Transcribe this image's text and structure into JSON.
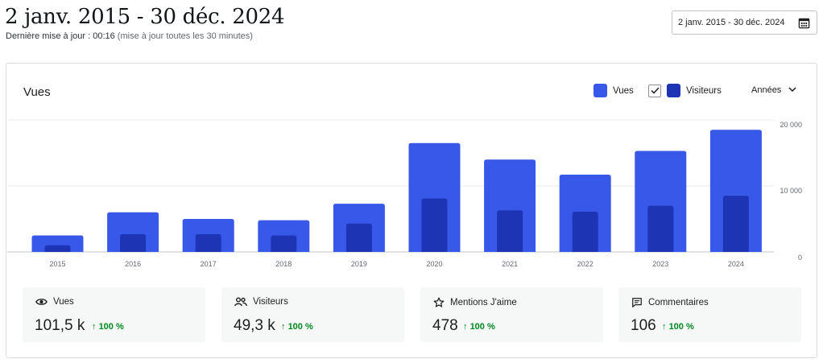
{
  "header": {
    "title": "2 janv. 2015 - 30 déc. 2024",
    "last_update_label": "Dernière mise à jour : 00:16",
    "update_note": "(mise à jour toutes les 30 minutes)",
    "date_range": "2 janv. 2015 - 30 déc. 2024",
    "date_range_icon": "calendar-icon"
  },
  "panel": {
    "title": "Vues",
    "legend": [
      {
        "label": "Vues",
        "color": "#3858e9"
      },
      {
        "label": "Visiteurs",
        "color": "#1d35b4",
        "checked": true
      }
    ],
    "period": "Années"
  },
  "chart_data": {
    "type": "bar",
    "categories": [
      "2015",
      "2016",
      "2017",
      "2018",
      "2019",
      "2020",
      "2021",
      "2022",
      "2023",
      "2024"
    ],
    "series": [
      {
        "name": "Vues",
        "color": "#3858e9",
        "values": [
          2500,
          6000,
          5000,
          4800,
          7300,
          16500,
          14000,
          11700,
          15300,
          18500
        ]
      },
      {
        "name": "Visiteurs",
        "color": "#1d35b4",
        "values": [
          1000,
          2700,
          2700,
          2500,
          4300,
          8100,
          6300,
          6100,
          7000,
          8500
        ]
      }
    ],
    "y_ticks": [
      "0",
      "10 000",
      "20 000"
    ],
    "ylim": [
      0,
      20000
    ],
    "grid": true,
    "legend_position": "top-right"
  },
  "stats": [
    {
      "label": "Vues",
      "icon": "eye-icon",
      "value": "101,5 k",
      "change": "100 %",
      "active": true
    },
    {
      "label": "Visiteurs",
      "icon": "people-icon",
      "value": "49,3 k",
      "change": "100 %",
      "active": false
    },
    {
      "label": "Mentions J'aime",
      "icon": "star-icon",
      "value": "478",
      "change": "100 %",
      "active": false
    },
    {
      "label": "Commentaires",
      "icon": "comment-icon",
      "value": "106",
      "change": "100 %",
      "active": false
    }
  ]
}
